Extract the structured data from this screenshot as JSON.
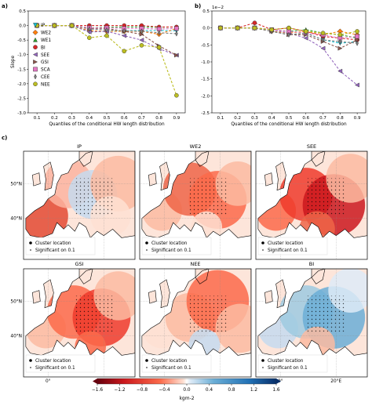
{
  "panel_labels": {
    "a": "a)",
    "b": "b)",
    "c": "c)"
  },
  "chart_data": [
    {
      "type": "line",
      "panel": "a)",
      "xlabel": "Quantiles of the conditional HW length distribution",
      "ylabel": "Slope",
      "ylim": [
        -3.0,
        0.5
      ],
      "yticks": [
        "0.5",
        "0.0",
        "-0.5",
        "-1.0",
        "-1.5",
        "-2.0",
        "-2.5",
        "-3.0"
      ],
      "x": [
        0.1,
        0.2,
        0.3,
        0.4,
        0.5,
        0.6,
        0.7,
        0.8,
        0.9
      ],
      "xticks": [
        "0.1",
        "0.2",
        "0.3",
        "0.4",
        "0.5",
        "0.6",
        "0.7",
        "0.8",
        "0.9"
      ],
      "legend_position": "left",
      "series": [
        {
          "name": "IP",
          "color": "#17becf",
          "marker": "tri_down",
          "values": [
            0,
            0,
            0,
            -0.22,
            -0.2,
            -0.18,
            -0.17,
            -0.17,
            -0.18
          ]
        },
        {
          "name": "WE2",
          "color": "#ff7f0e",
          "marker": "diamond",
          "values": [
            0,
            0,
            0,
            -0.18,
            -0.2,
            -0.2,
            -0.2,
            -0.3,
            -0.1
          ]
        },
        {
          "name": "WE1",
          "color": "#2ca02c",
          "marker": "tri_up",
          "values": [
            0,
            0,
            0,
            -0.08,
            -0.06,
            -0.05,
            -0.05,
            -0.06,
            -0.05
          ]
        },
        {
          "name": "BI",
          "color": "#d62728",
          "marker": "circle",
          "values": [
            0,
            0,
            0,
            0,
            0,
            0,
            0,
            -0.05,
            -0.05
          ]
        },
        {
          "name": "SEE",
          "color": "#9467bd",
          "marker": "tri_left",
          "values": [
            0,
            0,
            0,
            -0.22,
            -0.2,
            -0.35,
            -0.5,
            -0.8,
            -1.02
          ]
        },
        {
          "name": "GSI",
          "color": "#8c564b",
          "marker": "tri_right",
          "values": [
            0,
            0,
            0,
            -0.1,
            -0.1,
            -0.2,
            -0.3,
            -0.7,
            -1.02
          ]
        },
        {
          "name": "SCA",
          "color": "#e377c2",
          "marker": "square",
          "values": [
            0,
            0,
            0,
            -0.08,
            -0.08,
            -0.1,
            -0.1,
            -0.12,
            -0.1
          ]
        },
        {
          "name": "CEE",
          "color": "#7f7f7f",
          "marker": "thin_diamond",
          "values": [
            0,
            0,
            0,
            -0.12,
            -0.15,
            -0.18,
            -0.2,
            -0.25,
            -0.28
          ]
        },
        {
          "name": "NEE",
          "color": "#bcbd22",
          "marker": "circle",
          "values": [
            0,
            0,
            0,
            -0.42,
            -0.35,
            -0.88,
            -0.68,
            -0.75,
            -2.4
          ]
        }
      ]
    },
    {
      "type": "line",
      "panel": "b)",
      "scale_note": "1e−2",
      "xlabel": "Quantiles of the conditional HW length distribution",
      "ylim": [
        -2.5,
        0.5
      ],
      "yticks": [
        "0.5",
        "0.0",
        "-0.5",
        "-1.0",
        "-1.5",
        "-2.0",
        "-2.5"
      ],
      "x": [
        0.1,
        0.2,
        0.3,
        0.4,
        0.5,
        0.6,
        0.7,
        0.8,
        0.9
      ],
      "xticks": [
        "0.1",
        "0.2",
        "0.3",
        "0.4",
        "0.5",
        "0.6",
        "0.7",
        "0.8",
        "0.9"
      ],
      "series": [
        {
          "color": "#17becf",
          "marker": "tri_down",
          "values": [
            0,
            0,
            0,
            -0.1,
            -0.2,
            -0.15,
            -0.35,
            -0.45,
            -0.4
          ]
        },
        {
          "color": "#ff7f0e",
          "marker": "diamond",
          "values": [
            0,
            0,
            0,
            -0.1,
            -0.15,
            -0.1,
            -0.2,
            -0.1,
            -0.2
          ]
        },
        {
          "color": "#2ca02c",
          "marker": "tri_up",
          "values": [
            0,
            0,
            0,
            -0.05,
            -0.1,
            -0.05,
            -0.15,
            -0.2,
            -0.3
          ]
        },
        {
          "color": "#d62728",
          "marker": "circle",
          "values": [
            0,
            0,
            0.15,
            -0.05,
            0,
            -0.1,
            -0.25,
            -0.3,
            -0.35
          ]
        },
        {
          "color": "#9467bd",
          "marker": "tri_left",
          "values": [
            0,
            0,
            0,
            -0.05,
            -0.15,
            -0.3,
            -0.6,
            -1.27,
            -1.68
          ]
        },
        {
          "color": "#8c564b",
          "marker": "tri_right",
          "values": [
            0,
            0,
            0,
            -0.1,
            -0.2,
            -0.2,
            -0.4,
            -0.6,
            -0.35
          ]
        },
        {
          "color": "#e377c2",
          "marker": "square",
          "values": [
            0,
            0,
            0,
            -0.05,
            -0.1,
            -0.15,
            -0.2,
            -0.3,
            -0.25
          ]
        },
        {
          "color": "#7f7f7f",
          "marker": "thin_diamond",
          "values": [
            0,
            0,
            0,
            -0.1,
            -0.2,
            -0.15,
            -0.35,
            -0.4,
            -0.45
          ]
        },
        {
          "color": "#bcbd22",
          "marker": "circle",
          "values": [
            0,
            0,
            0,
            -0.05,
            0,
            -0.1,
            -0.15,
            -0.2,
            -0.1
          ]
        }
      ]
    }
  ],
  "maps": {
    "titles": [
      "IP",
      "WE2",
      "SEE",
      "GSI",
      "NEE",
      "BI"
    ],
    "legend": {
      "cluster": "Cluster location",
      "significant": "Significant on 0.1"
    },
    "lat_labels": [
      "50°N",
      "40°N"
    ],
    "lon_labels": [
      "0°",
      "20°E"
    ],
    "colorbar": {
      "ticks": [
        "−1.6",
        "−1.2",
        "−0.8",
        "−0.4",
        "0.0",
        "0.4",
        "0.8",
        "1.2",
        "1.6"
      ],
      "label": "kgm-2"
    }
  }
}
